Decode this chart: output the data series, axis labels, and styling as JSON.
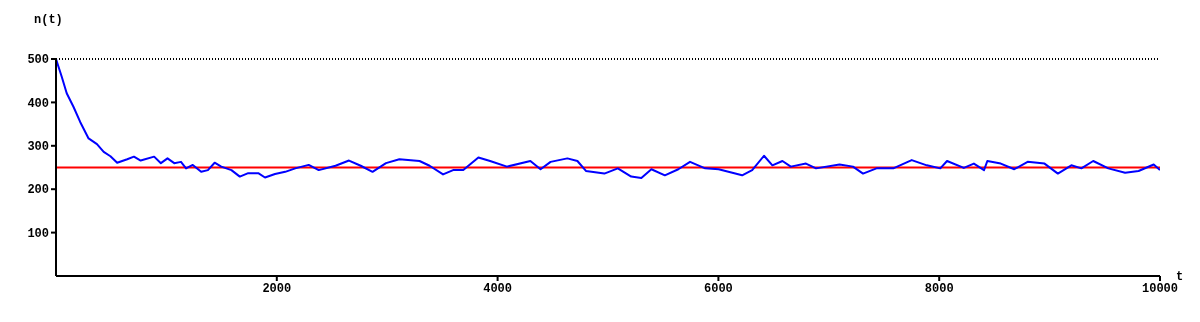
{
  "chart_data": {
    "type": "line",
    "xlabel": "t",
    "ylabel": "n(t)",
    "xlim": [
      0,
      10000
    ],
    "ylim": [
      0,
      500
    ],
    "xticks": [
      2000,
      4000,
      6000,
      8000,
      10000
    ],
    "yticks": [
      100,
      200,
      300,
      400,
      500
    ],
    "marker": "none",
    "line_style": "solid",
    "grid": false,
    "series": [
      {
        "color": "#0000ff",
        "x": [
          0,
          52,
          97,
          158,
          219,
          295,
          371,
          432,
          493,
          554,
          645,
          706,
          767,
          889,
          950,
          1010,
          1071,
          1132,
          1178,
          1239,
          1315,
          1376,
          1437,
          1497,
          1589,
          1665,
          1741,
          1832,
          1893,
          1984,
          2076,
          2167,
          2289,
          2380,
          2532,
          2654,
          2760,
          2867,
          2989,
          3110,
          3293,
          3384,
          3506,
          3597,
          3689,
          3826,
          3932,
          4084,
          4297,
          4389,
          4480,
          4632,
          4723,
          4800,
          4967,
          5089,
          5210,
          5302,
          5393,
          5515,
          5637,
          5743,
          5880,
          6002,
          6215,
          6306,
          6413,
          6489,
          6580,
          6656,
          6793,
          6884,
          7097,
          7219,
          7310,
          7432,
          7584,
          7751,
          7888,
          8010,
          8071,
          8223,
          8314,
          8406,
          8436,
          8558,
          8680,
          8801,
          8954,
          9075,
          9197,
          9288,
          9395,
          9532,
          9684,
          9806,
          9943,
          10000
        ],
        "values": [
          500,
          459,
          421,
          390,
          355,
          317,
          304,
          286,
          276,
          261,
          269,
          275,
          266,
          275,
          260,
          271,
          260,
          263,
          248,
          256,
          240,
          244,
          261,
          252,
          244,
          229,
          237,
          237,
          227,
          235,
          240,
          248,
          256,
          244,
          254,
          266,
          254,
          240,
          260,
          269,
          265,
          254,
          234,
          244,
          244,
          273,
          265,
          252,
          265,
          246,
          263,
          271,
          265,
          242,
          236,
          248,
          229,
          226,
          246,
          232,
          246,
          263,
          248,
          246,
          232,
          244,
          277,
          255,
          265,
          252,
          259,
          248,
          257,
          252,
          236,
          248,
          248,
          267,
          255,
          248,
          265,
          249,
          259,
          244,
          265,
          259,
          246,
          263,
          259,
          236,
          255,
          248,
          265,
          248,
          238,
          242,
          257,
          244
        ]
      }
    ],
    "ref_lines": [
      {
        "axis": "y",
        "value": 250,
        "color": "#ff0000",
        "line_style": "solid"
      },
      {
        "axis": "y",
        "value": 500,
        "color": "#000000",
        "line_style": "dotted"
      }
    ]
  }
}
